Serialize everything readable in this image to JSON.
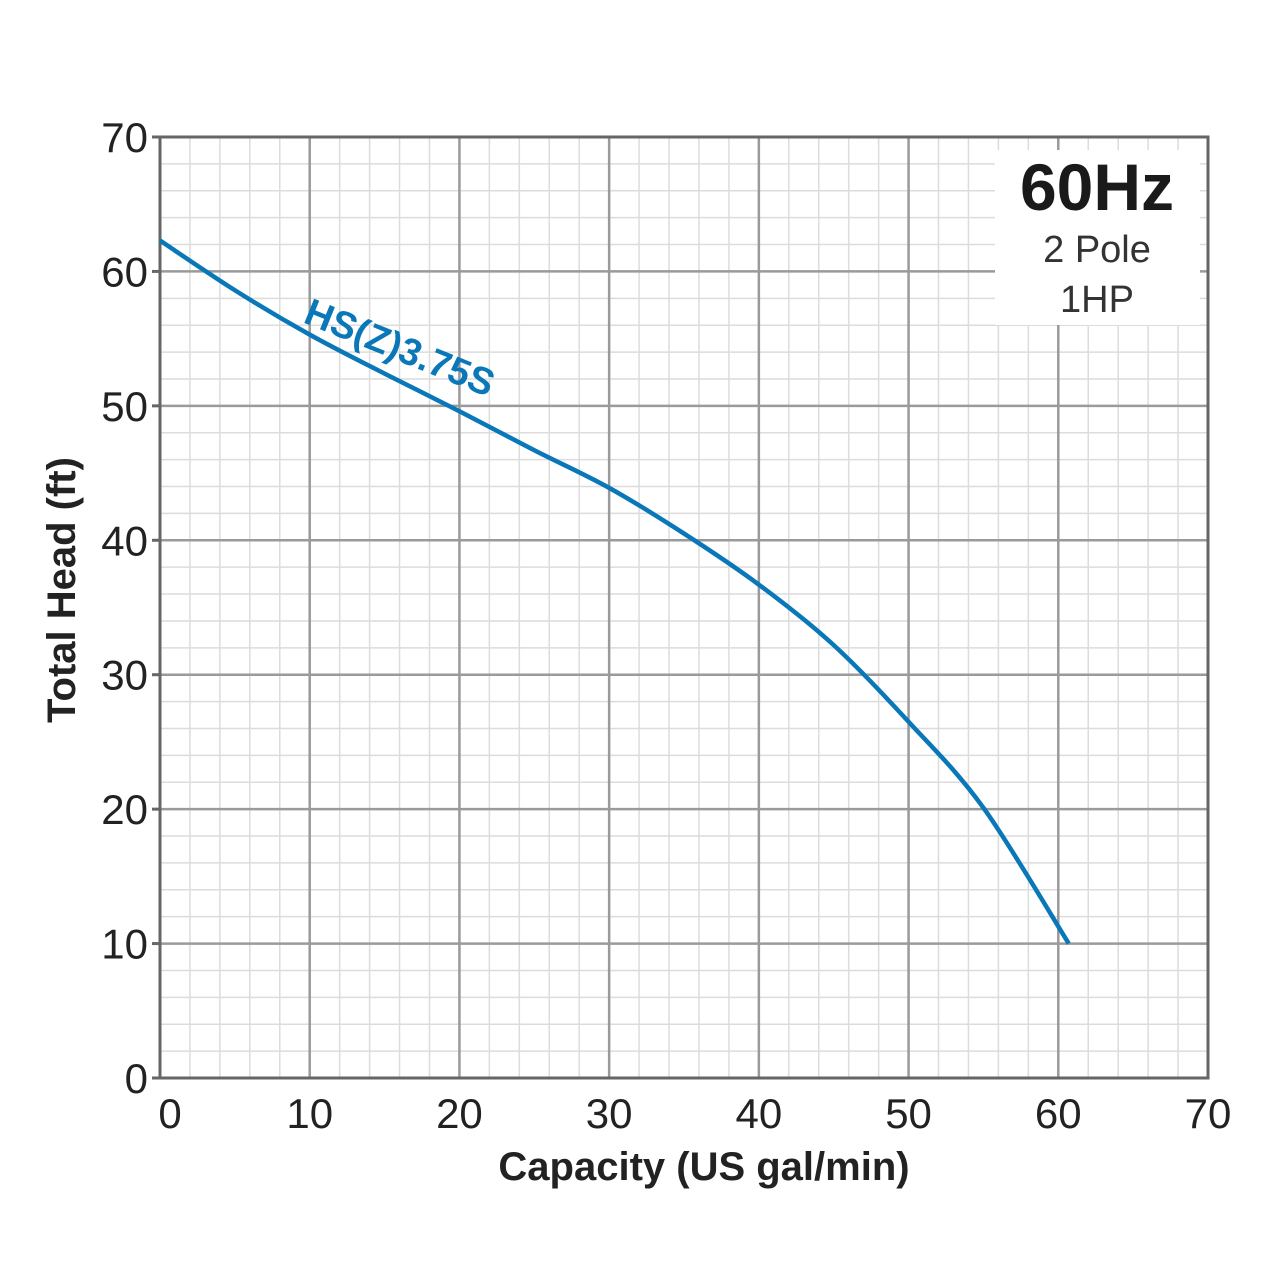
{
  "chart_data": {
    "type": "line",
    "xlabel": "Capacity (US gal/min)",
    "ylabel": "Total Head (ft)",
    "xlim": [
      0,
      70
    ],
    "ylim": [
      0,
      70
    ],
    "xticks": [
      0,
      10,
      20,
      30,
      40,
      50,
      60,
      70
    ],
    "yticks": [
      0,
      10,
      20,
      30,
      40,
      50,
      60,
      70
    ],
    "grid": true,
    "minor_grid_step": 2,
    "legend_box": {
      "title": "60Hz",
      "line1": "2 Pole",
      "line2": "1HP",
      "placement": "top-right"
    },
    "series": [
      {
        "name": "HS(Z)3.75S",
        "color": "#0a78b8",
        "x": [
          0,
          5,
          10,
          15,
          20,
          25,
          30,
          35,
          40,
          45,
          50,
          55,
          60.7
        ],
        "y": [
          62.3,
          58.6,
          55.3,
          52.4,
          49.6,
          46.7,
          43.9,
          40.5,
          36.7,
          32.2,
          26.5,
          20.1,
          10.0
        ]
      }
    ]
  }
}
